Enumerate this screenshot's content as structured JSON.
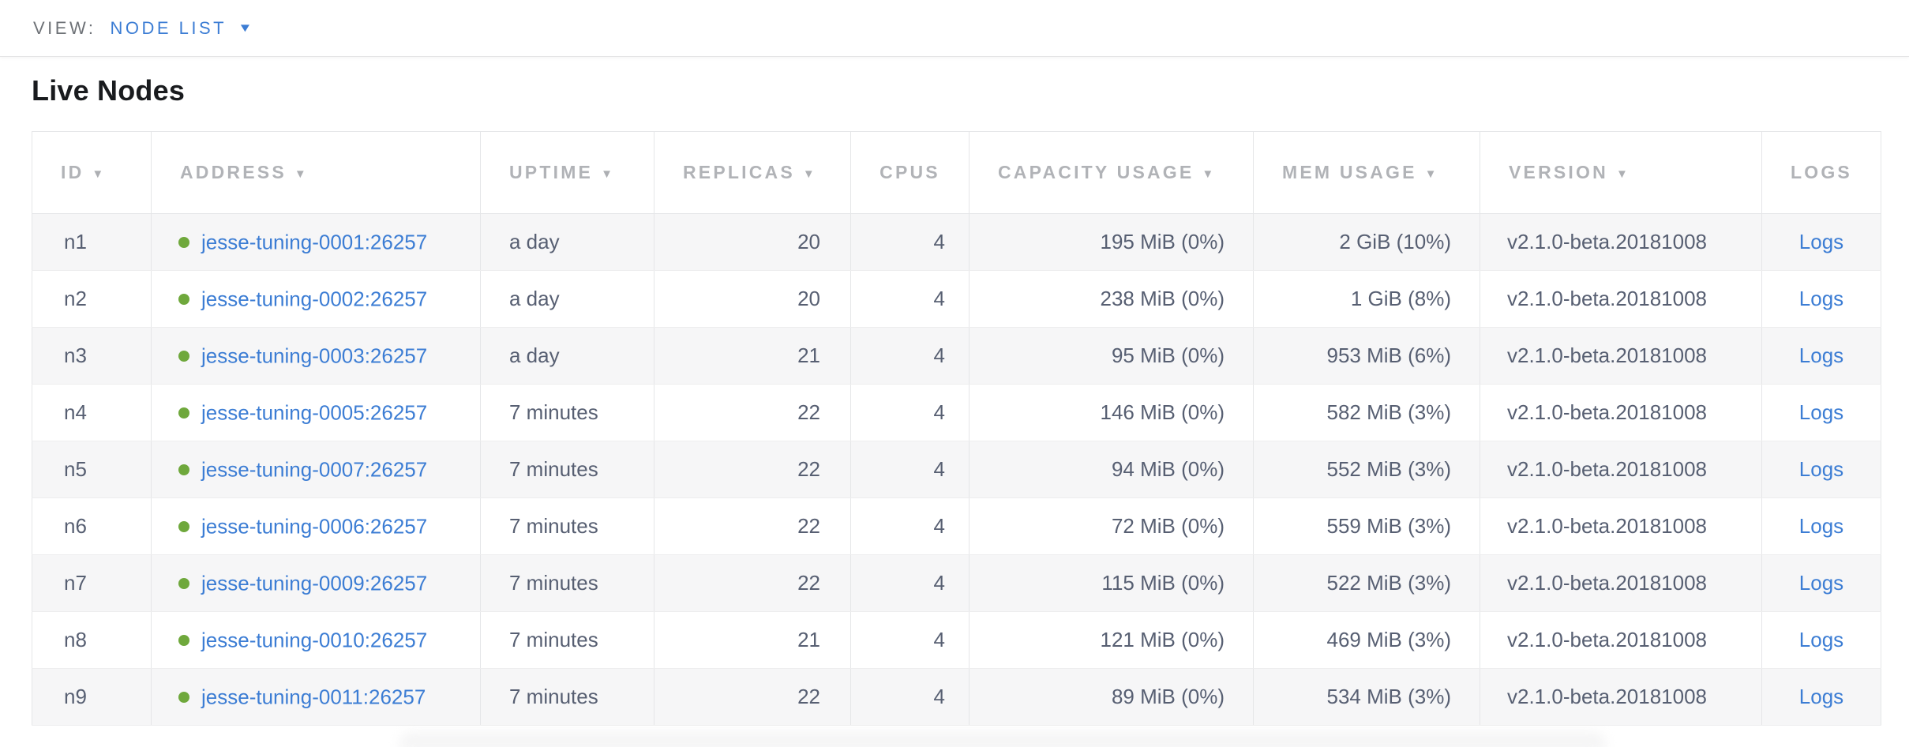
{
  "view_bar": {
    "label": "VIEW:",
    "selected": "NODE LIST",
    "caret_icon": "▼"
  },
  "page": {
    "title": "Live Nodes"
  },
  "table": {
    "columns": [
      {
        "key": "id",
        "label": "ID",
        "sort_icon": "▼"
      },
      {
        "key": "address",
        "label": "ADDRESS",
        "sort_icon": "▼"
      },
      {
        "key": "uptime",
        "label": "UPTIME",
        "sort_icon": "▼"
      },
      {
        "key": "replicas",
        "label": "REPLICAS",
        "sort_icon": "▼"
      },
      {
        "key": "cpus",
        "label": "CPUS"
      },
      {
        "key": "capacity",
        "label": "CAPACITY USAGE",
        "sort_icon": "▼"
      },
      {
        "key": "mem",
        "label": "MEM USAGE",
        "sort_icon": "▼"
      },
      {
        "key": "version",
        "label": "VERSION",
        "sort_icon": "▼"
      },
      {
        "key": "logs",
        "label": "LOGS"
      }
    ],
    "rows": [
      {
        "id": "n1",
        "address": "jesse-tuning-0001:26257",
        "uptime": "a day",
        "replicas": "20",
        "cpus": "4",
        "capacity": "195 MiB (0%)",
        "mem": "2 GiB (10%)",
        "version": "v2.1.0-beta.20181008",
        "logs": "Logs"
      },
      {
        "id": "n2",
        "address": "jesse-tuning-0002:26257",
        "uptime": "a day",
        "replicas": "20",
        "cpus": "4",
        "capacity": "238 MiB (0%)",
        "mem": "1 GiB (8%)",
        "version": "v2.1.0-beta.20181008",
        "logs": "Logs"
      },
      {
        "id": "n3",
        "address": "jesse-tuning-0003:26257",
        "uptime": "a day",
        "replicas": "21",
        "cpus": "4",
        "capacity": "95 MiB (0%)",
        "mem": "953 MiB (6%)",
        "version": "v2.1.0-beta.20181008",
        "logs": "Logs"
      },
      {
        "id": "n4",
        "address": "jesse-tuning-0005:26257",
        "uptime": "7 minutes",
        "replicas": "22",
        "cpus": "4",
        "capacity": "146 MiB (0%)",
        "mem": "582 MiB (3%)",
        "version": "v2.1.0-beta.20181008",
        "logs": "Logs"
      },
      {
        "id": "n5",
        "address": "jesse-tuning-0007:26257",
        "uptime": "7 minutes",
        "replicas": "22",
        "cpus": "4",
        "capacity": "94 MiB (0%)",
        "mem": "552 MiB (3%)",
        "version": "v2.1.0-beta.20181008",
        "logs": "Logs"
      },
      {
        "id": "n6",
        "address": "jesse-tuning-0006:26257",
        "uptime": "7 minutes",
        "replicas": "22",
        "cpus": "4",
        "capacity": "72 MiB (0%)",
        "mem": "559 MiB (3%)",
        "version": "v2.1.0-beta.20181008",
        "logs": "Logs"
      },
      {
        "id": "n7",
        "address": "jesse-tuning-0009:26257",
        "uptime": "7 minutes",
        "replicas": "22",
        "cpus": "4",
        "capacity": "115 MiB (0%)",
        "mem": "522 MiB (3%)",
        "version": "v2.1.0-beta.20181008",
        "logs": "Logs"
      },
      {
        "id": "n8",
        "address": "jesse-tuning-0010:26257",
        "uptime": "7 minutes",
        "replicas": "21",
        "cpus": "4",
        "capacity": "121 MiB (0%)",
        "mem": "469 MiB (3%)",
        "version": "v2.1.0-beta.20181008",
        "logs": "Logs"
      },
      {
        "id": "n9",
        "address": "jesse-tuning-0011:26257",
        "uptime": "7 minutes",
        "replicas": "22",
        "cpus": "4",
        "capacity": "89 MiB (0%)",
        "mem": "534 MiB (3%)",
        "version": "v2.1.0-beta.20181008",
        "logs": "Logs"
      }
    ]
  },
  "icons": {
    "node_live_status": "green-dot"
  },
  "colors": {
    "accent_blue": "#3c7dd4",
    "status_green": "#6fa83c",
    "header_gray": "#b1b3b7",
    "text_slate": "#575f72",
    "title_black": "#191b1e",
    "view_label_gray": "#6e7277",
    "border": "#e5e6e8",
    "row_line": "#ededee",
    "stripe": "#f6f6f7"
  }
}
